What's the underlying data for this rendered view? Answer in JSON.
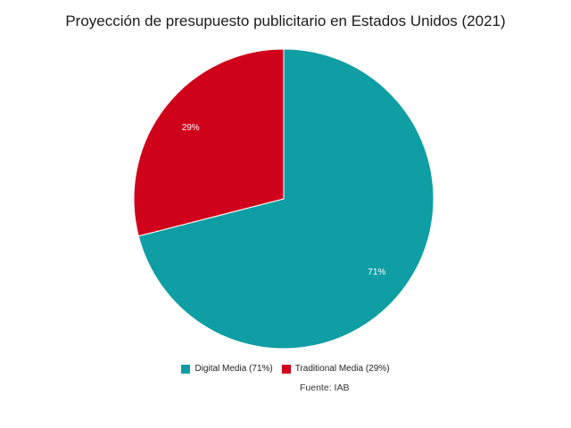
{
  "chart_data": {
    "type": "pie",
    "title": "Proyección de presupuesto publicitario en Estados Unidos (2021)",
    "slices": [
      {
        "label": "Digital Media",
        "value": 71,
        "display": "71%",
        "legend": "Digital Media (71%)",
        "color": "#0e9ea3"
      },
      {
        "label": "Traditional Media",
        "value": 29,
        "display": "29%",
        "legend": "Traditional Media (29%)",
        "color": "#d0021b"
      }
    ],
    "start": "12 o'clock",
    "direction": "clockwise",
    "legend_position": "bottom",
    "source": "Fuente: IAB"
  }
}
